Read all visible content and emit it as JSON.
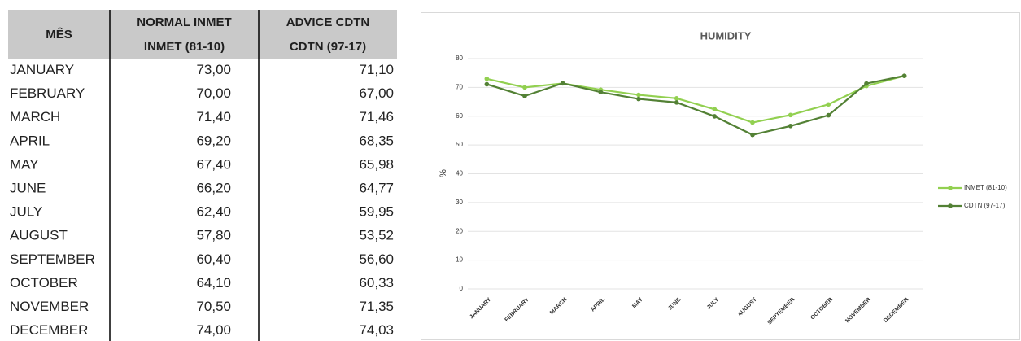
{
  "table": {
    "header": [
      [
        "MÊS"
      ],
      [
        "NORMAL INMET",
        "INMET (81-10)"
      ],
      [
        "ADVICE CDTN",
        "CDTN (97-17)"
      ]
    ],
    "rows": [
      [
        "JANUARY",
        "73,00",
        "71,10"
      ],
      [
        "FEBRUARY",
        "70,00",
        "67,00"
      ],
      [
        "MARCH",
        "71,40",
        "71,46"
      ],
      [
        "APRIL",
        "69,20",
        "68,35"
      ],
      [
        "MAY",
        "67,40",
        "65,98"
      ],
      [
        "JUNE",
        "66,20",
        "64,77"
      ],
      [
        "JULY",
        "62,40",
        "59,95"
      ],
      [
        "AUGUST",
        "57,80",
        "53,52"
      ],
      [
        "SEPTEMBER",
        "60,40",
        "56,60"
      ],
      [
        "OCTOBER",
        "64,10",
        "60,33"
      ],
      [
        "NOVEMBER",
        "70,50",
        "71,35"
      ],
      [
        "DECEMBER",
        "74,00",
        "74,03"
      ]
    ]
  },
  "chart_data": {
    "type": "line",
    "title": "HUMIDITY",
    "y_label": "%",
    "categories": [
      "JANUARY",
      "FEBRUARY",
      "MARCH",
      "APRIL",
      "MAY",
      "JUNE",
      "JULY",
      "AUGUST",
      "SEPTEMBER",
      "OCTOBER",
      "NOVEMBER",
      "DECEMBER"
    ],
    "series": [
      {
        "name": "INMET (81-10)",
        "color": "#92d050",
        "values": [
          73,
          70,
          71.4,
          69.2,
          67.4,
          66.2,
          62.4,
          57.8,
          60.4,
          64.1,
          70.5,
          74
        ]
      },
      {
        "name": "CDTN (97-17)",
        "color": "#538135",
        "values": [
          71.1,
          67,
          71.46,
          68.35,
          65.98,
          64.77,
          59.95,
          53.52,
          56.6,
          60.33,
          71.35,
          74.03
        ]
      }
    ],
    "ylim": [
      0,
      80
    ],
    "yticks": [
      0,
      10,
      20,
      30,
      40,
      50,
      60,
      70,
      80
    ],
    "grid": true,
    "legend": "right"
  }
}
